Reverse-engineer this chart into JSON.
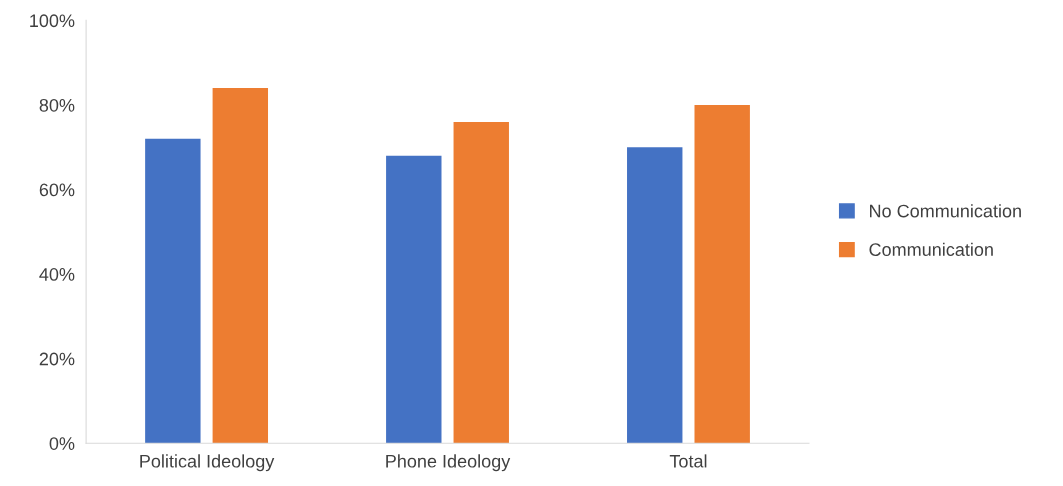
{
  "chart_data": {
    "type": "bar",
    "categories": [
      "Political Ideology",
      "Phone Ideology",
      "Total"
    ],
    "series": [
      {
        "name": "No Communication",
        "color": "#4472c4",
        "values": [
          72,
          68,
          70
        ]
      },
      {
        "name": "Communication",
        "color": "#ed7d31",
        "values": [
          84,
          76,
          80
        ]
      }
    ],
    "ylim": [
      0,
      100
    ],
    "yticks": [
      {
        "value": 0,
        "label": "0%"
      },
      {
        "value": 20,
        "label": "20%"
      },
      {
        "value": 40,
        "label": "40%"
      },
      {
        "value": 60,
        "label": "60%"
      },
      {
        "value": 80,
        "label": "80%"
      },
      {
        "value": 100,
        "label": "100%"
      }
    ],
    "grid": false,
    "legend": "right"
  }
}
